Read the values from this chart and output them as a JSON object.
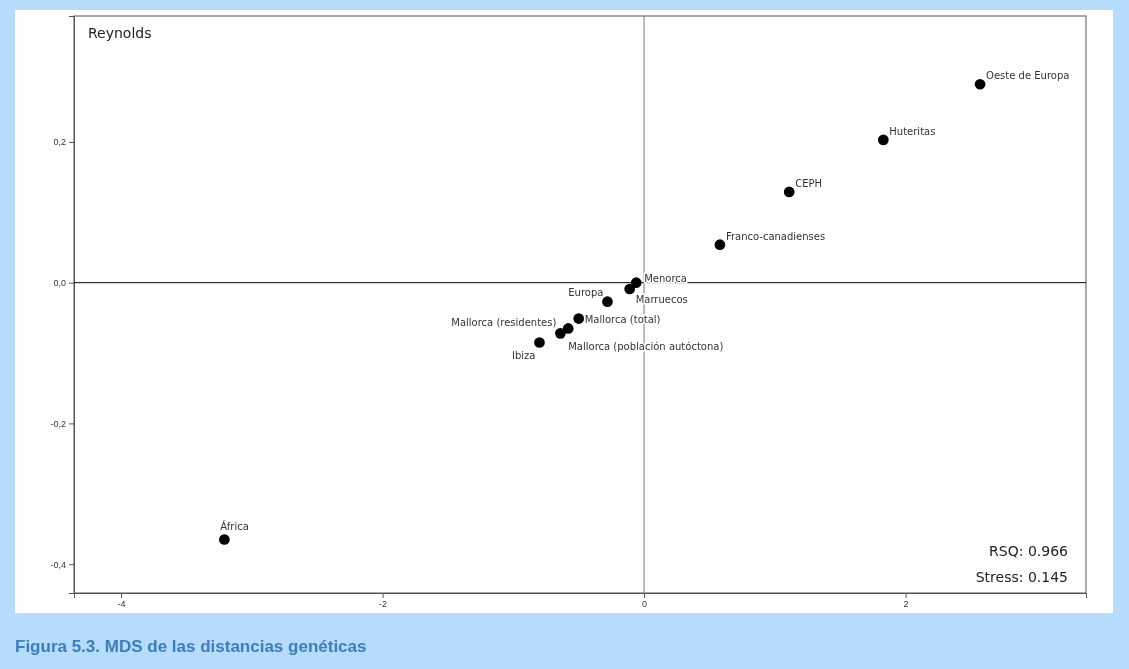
{
  "chart_data": {
    "type": "scatter",
    "title": "Figura 5.3. MDS de las distancias genéticas",
    "series": [
      {
        "color": "#000000",
        "x": [
          2.57,
          1.83,
          1.11,
          0.58,
          -0.06,
          -0.11,
          -0.28,
          -0.5,
          -0.64,
          -0.58,
          -0.8,
          -3.21
        ],
        "values": [
          0.282,
          0.203,
          0.129,
          0.054,
          0.0,
          -0.009,
          -0.027,
          -0.051,
          -0.072,
          -0.065,
          -0.085,
          -0.365
        ]
      }
    ],
    "annotations": [
      "Reynolds",
      "RSQ: 0.966",
      "Stress: 0.145",
      {
        "text": "Oeste de Europa",
        "x": 2.57,
        "y": 0.282
      },
      {
        "text": "Huteritas",
        "x": 1.83,
        "y": 0.203
      },
      {
        "text": "CEPH",
        "x": 1.11,
        "y": 0.129
      },
      {
        "text": "Franco-canadienses",
        "x": 0.58,
        "y": 0.054
      },
      {
        "text": "Menorca",
        "x": -0.06,
        "y": 0.0
      },
      {
        "text": "Marruecos",
        "x": -0.11,
        "y": -0.009
      },
      {
        "text": "Europa",
        "x": -0.28,
        "y": -0.027
      },
      {
        "text": "Mallorca (total)",
        "x": -0.5,
        "y": -0.051
      },
      {
        "text": "Mallorca (residentes)",
        "x": -0.64,
        "y": -0.072
      },
      {
        "text": "Mallorca (población autóctona)",
        "x": -0.58,
        "y": -0.065
      },
      {
        "text": "Ibiza",
        "x": -0.8,
        "y": -0.085
      },
      {
        "text": "África",
        "x": -3.21,
        "y": -0.365
      }
    ],
    "xlim": [
      -4.36,
      3.38
    ],
    "xticks": [
      -4,
      -2,
      0,
      2
    ],
    "ylim": [
      -0.441,
      0.379
    ],
    "yticks": [
      {
        "value": -0.4,
        "label": "-0,4"
      },
      {
        "value": -0.2,
        "label": "-0,2"
      },
      {
        "value": 0,
        "label": "0,0"
      },
      {
        "value": 0.2,
        "label": "0,2"
      }
    ],
    "ref_lines": [
      {
        "axis": "x",
        "value": 0,
        "color": "#777777"
      },
      {
        "axis": "y",
        "value": 0,
        "color": "#000000"
      }
    ],
    "marker": "circle",
    "grid": false
  }
}
